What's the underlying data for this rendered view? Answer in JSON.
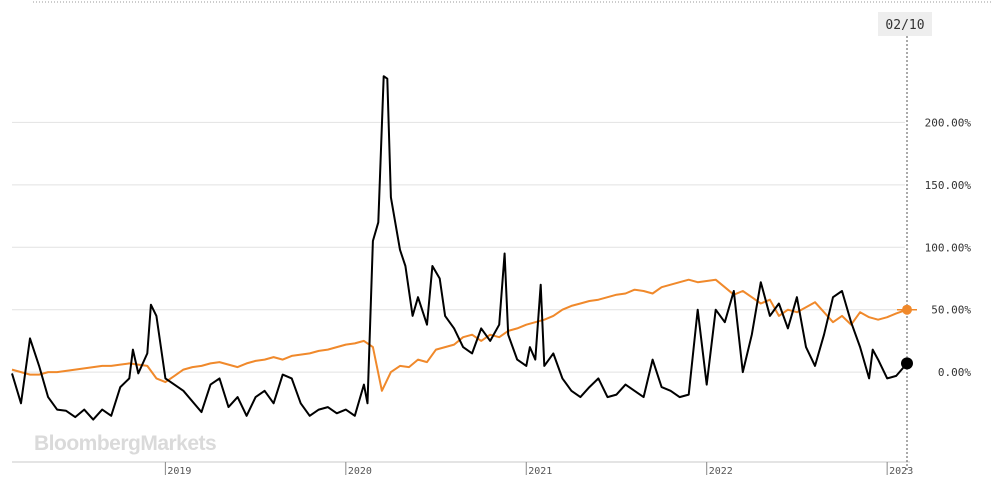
{
  "brand": {
    "watermark": "BloombergMarkets"
  },
  "cursor": {
    "date_label": "02/10"
  },
  "colors": {
    "series_1": "#000000",
    "series_2": "#f0892b",
    "grid": "#e2e2e2",
    "badge_bg": "#eeeeee"
  },
  "chart_data": {
    "type": "line",
    "title": "",
    "xlabel": "",
    "ylabel": "",
    "x_range": [
      2018.15,
      2023.11
    ],
    "ylim": [
      -72,
      242
    ],
    "y_ticks": [
      {
        "value": 200,
        "label": "200.00%"
      },
      {
        "value": 150,
        "label": "150.00%"
      },
      {
        "value": 100,
        "label": "100.00%"
      },
      {
        "value": 50,
        "label": "50.00%"
      },
      {
        "value": 0,
        "label": "0.00%"
      }
    ],
    "x_ticks": [
      {
        "value": 2019.0,
        "label": "2019"
      },
      {
        "value": 2020.0,
        "label": "2020"
      },
      {
        "value": 2021.0,
        "label": "2021"
      },
      {
        "value": 2022.0,
        "label": "2022"
      },
      {
        "value": 2023.0,
        "label": "2023"
      }
    ],
    "grid": true,
    "series": [
      {
        "color": "#000000",
        "last_value": 7,
        "points": [
          [
            2018.15,
            -1
          ],
          [
            2018.2,
            -25
          ],
          [
            2018.25,
            27
          ],
          [
            2018.3,
            5
          ],
          [
            2018.35,
            -20
          ],
          [
            2018.4,
            -30
          ],
          [
            2018.45,
            -31
          ],
          [
            2018.5,
            -36
          ],
          [
            2018.55,
            -30
          ],
          [
            2018.6,
            -38
          ],
          [
            2018.65,
            -30
          ],
          [
            2018.7,
            -35
          ],
          [
            2018.75,
            -12
          ],
          [
            2018.8,
            -5
          ],
          [
            2018.82,
            18
          ],
          [
            2018.85,
            -1
          ],
          [
            2018.9,
            15
          ],
          [
            2018.92,
            54
          ],
          [
            2018.95,
            45
          ],
          [
            2019.0,
            -5
          ],
          [
            2019.1,
            -15
          ],
          [
            2019.2,
            -32
          ],
          [
            2019.25,
            -10
          ],
          [
            2019.3,
            -5
          ],
          [
            2019.35,
            -28
          ],
          [
            2019.4,
            -20
          ],
          [
            2019.45,
            -35
          ],
          [
            2019.5,
            -20
          ],
          [
            2019.55,
            -15
          ],
          [
            2019.6,
            -25
          ],
          [
            2019.65,
            -2
          ],
          [
            2019.7,
            -5
          ],
          [
            2019.75,
            -25
          ],
          [
            2019.8,
            -35
          ],
          [
            2019.85,
            -30
          ],
          [
            2019.9,
            -28
          ],
          [
            2019.95,
            -33
          ],
          [
            2020.0,
            -30
          ],
          [
            2020.05,
            -35
          ],
          [
            2020.1,
            -10
          ],
          [
            2020.12,
            -25
          ],
          [
            2020.15,
            105
          ],
          [
            2020.18,
            120
          ],
          [
            2020.21,
            237
          ],
          [
            2020.23,
            235
          ],
          [
            2020.25,
            140
          ],
          [
            2020.3,
            98
          ],
          [
            2020.33,
            85
          ],
          [
            2020.37,
            45
          ],
          [
            2020.4,
            60
          ],
          [
            2020.45,
            38
          ],
          [
            2020.48,
            85
          ],
          [
            2020.52,
            75
          ],
          [
            2020.55,
            45
          ],
          [
            2020.6,
            35
          ],
          [
            2020.65,
            20
          ],
          [
            2020.7,
            15
          ],
          [
            2020.75,
            35
          ],
          [
            2020.8,
            25
          ],
          [
            2020.85,
            38
          ],
          [
            2020.88,
            95
          ],
          [
            2020.9,
            30
          ],
          [
            2020.95,
            10
          ],
          [
            2021.0,
            5
          ],
          [
            2021.02,
            20
          ],
          [
            2021.05,
            10
          ],
          [
            2021.08,
            70
          ],
          [
            2021.1,
            5
          ],
          [
            2021.15,
            15
          ],
          [
            2021.2,
            -5
          ],
          [
            2021.25,
            -15
          ],
          [
            2021.3,
            -20
          ],
          [
            2021.35,
            -12
          ],
          [
            2021.4,
            -5
          ],
          [
            2021.45,
            -20
          ],
          [
            2021.5,
            -18
          ],
          [
            2021.55,
            -10
          ],
          [
            2021.6,
            -15
          ],
          [
            2021.65,
            -20
          ],
          [
            2021.7,
            10
          ],
          [
            2021.75,
            -12
          ],
          [
            2021.8,
            -15
          ],
          [
            2021.85,
            -20
          ],
          [
            2021.9,
            -18
          ],
          [
            2021.95,
            50
          ],
          [
            2022.0,
            -10
          ],
          [
            2022.05,
            50
          ],
          [
            2022.1,
            40
          ],
          [
            2022.15,
            65
          ],
          [
            2022.2,
            0
          ],
          [
            2022.25,
            30
          ],
          [
            2022.3,
            72
          ],
          [
            2022.35,
            45
          ],
          [
            2022.4,
            55
          ],
          [
            2022.45,
            35
          ],
          [
            2022.5,
            60
          ],
          [
            2022.55,
            20
          ],
          [
            2022.6,
            5
          ],
          [
            2022.65,
            30
          ],
          [
            2022.7,
            60
          ],
          [
            2022.75,
            65
          ],
          [
            2022.8,
            40
          ],
          [
            2022.85,
            20
          ],
          [
            2022.9,
            -5
          ],
          [
            2022.92,
            18
          ],
          [
            2022.95,
            10
          ],
          [
            2023.0,
            -5
          ],
          [
            2023.05,
            -3
          ],
          [
            2023.11,
            7
          ]
        ]
      },
      {
        "color": "#f0892b",
        "last_value": 50,
        "points": [
          [
            2018.15,
            2
          ],
          [
            2018.2,
            0
          ],
          [
            2018.25,
            -2
          ],
          [
            2018.3,
            -2
          ],
          [
            2018.35,
            0
          ],
          [
            2018.4,
            0
          ],
          [
            2018.45,
            1
          ],
          [
            2018.5,
            2
          ],
          [
            2018.55,
            3
          ],
          [
            2018.6,
            4
          ],
          [
            2018.65,
            5
          ],
          [
            2018.7,
            5
          ],
          [
            2018.75,
            6
          ],
          [
            2018.8,
            7
          ],
          [
            2018.85,
            6
          ],
          [
            2018.9,
            5
          ],
          [
            2018.95,
            -5
          ],
          [
            2019.0,
            -8
          ],
          [
            2019.05,
            -3
          ],
          [
            2019.1,
            2
          ],
          [
            2019.15,
            4
          ],
          [
            2019.2,
            5
          ],
          [
            2019.25,
            7
          ],
          [
            2019.3,
            8
          ],
          [
            2019.35,
            6
          ],
          [
            2019.4,
            4
          ],
          [
            2019.45,
            7
          ],
          [
            2019.5,
            9
          ],
          [
            2019.55,
            10
          ],
          [
            2019.6,
            12
          ],
          [
            2019.65,
            10
          ],
          [
            2019.7,
            13
          ],
          [
            2019.75,
            14
          ],
          [
            2019.8,
            15
          ],
          [
            2019.85,
            17
          ],
          [
            2019.9,
            18
          ],
          [
            2019.95,
            20
          ],
          [
            2020.0,
            22
          ],
          [
            2020.05,
            23
          ],
          [
            2020.1,
            25
          ],
          [
            2020.15,
            20
          ],
          [
            2020.2,
            -15
          ],
          [
            2020.25,
            0
          ],
          [
            2020.3,
            5
          ],
          [
            2020.35,
            4
          ],
          [
            2020.4,
            10
          ],
          [
            2020.45,
            8
          ],
          [
            2020.5,
            18
          ],
          [
            2020.55,
            20
          ],
          [
            2020.6,
            22
          ],
          [
            2020.65,
            28
          ],
          [
            2020.7,
            30
          ],
          [
            2020.75,
            25
          ],
          [
            2020.8,
            30
          ],
          [
            2020.85,
            28
          ],
          [
            2020.9,
            33
          ],
          [
            2020.95,
            35
          ],
          [
            2021.0,
            38
          ],
          [
            2021.05,
            40
          ],
          [
            2021.1,
            42
          ],
          [
            2021.15,
            45
          ],
          [
            2021.2,
            50
          ],
          [
            2021.25,
            53
          ],
          [
            2021.3,
            55
          ],
          [
            2021.35,
            57
          ],
          [
            2021.4,
            58
          ],
          [
            2021.45,
            60
          ],
          [
            2021.5,
            62
          ],
          [
            2021.55,
            63
          ],
          [
            2021.6,
            66
          ],
          [
            2021.65,
            65
          ],
          [
            2021.7,
            63
          ],
          [
            2021.75,
            68
          ],
          [
            2021.8,
            70
          ],
          [
            2021.85,
            72
          ],
          [
            2021.9,
            74
          ],
          [
            2021.95,
            72
          ],
          [
            2022.0,
            73
          ],
          [
            2022.05,
            74
          ],
          [
            2022.1,
            68
          ],
          [
            2022.15,
            62
          ],
          [
            2022.2,
            65
          ],
          [
            2022.25,
            60
          ],
          [
            2022.3,
            55
          ],
          [
            2022.35,
            58
          ],
          [
            2022.4,
            45
          ],
          [
            2022.45,
            50
          ],
          [
            2022.5,
            48
          ],
          [
            2022.55,
            52
          ],
          [
            2022.6,
            56
          ],
          [
            2022.65,
            48
          ],
          [
            2022.7,
            40
          ],
          [
            2022.75,
            45
          ],
          [
            2022.8,
            38
          ],
          [
            2022.85,
            48
          ],
          [
            2022.9,
            44
          ],
          [
            2022.95,
            42
          ],
          [
            2023.0,
            44
          ],
          [
            2023.05,
            47
          ],
          [
            2023.11,
            50
          ]
        ]
      }
    ]
  }
}
